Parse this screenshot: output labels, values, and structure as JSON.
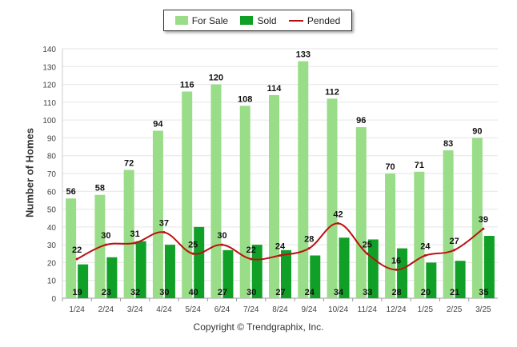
{
  "chart_data": {
    "type": "bar",
    "categories": [
      "1/24",
      "2/24",
      "3/24",
      "4/24",
      "5/24",
      "6/24",
      "7/24",
      "8/24",
      "9/24",
      "10/24",
      "11/24",
      "12/24",
      "1/25",
      "2/25",
      "3/25"
    ],
    "series": [
      {
        "name": "For Sale",
        "kind": "bar",
        "color": "#99dd88",
        "values": [
          56,
          58,
          72,
          94,
          116,
          120,
          108,
          114,
          133,
          112,
          96,
          70,
          71,
          83,
          90
        ]
      },
      {
        "name": "Sold",
        "kind": "bar",
        "color": "#11a027",
        "values": [
          19,
          23,
          32,
          30,
          40,
          27,
          30,
          27,
          24,
          34,
          33,
          28,
          20,
          21,
          35
        ]
      },
      {
        "name": "Pended",
        "kind": "line",
        "color": "#bb1111",
        "values": [
          22,
          30,
          31,
          37,
          25,
          30,
          22,
          24,
          28,
          42,
          25,
          16,
          24,
          27,
          39
        ]
      }
    ],
    "ylabel": "Number of Homes",
    "ylim": [
      0,
      140
    ],
    "yticks": [
      0,
      10,
      20,
      30,
      40,
      50,
      60,
      70,
      80,
      90,
      100,
      110,
      120,
      130,
      140
    ],
    "grid": true,
    "legend": "top-center"
  },
  "copyright": "Copyright © Trendgraphix, Inc."
}
